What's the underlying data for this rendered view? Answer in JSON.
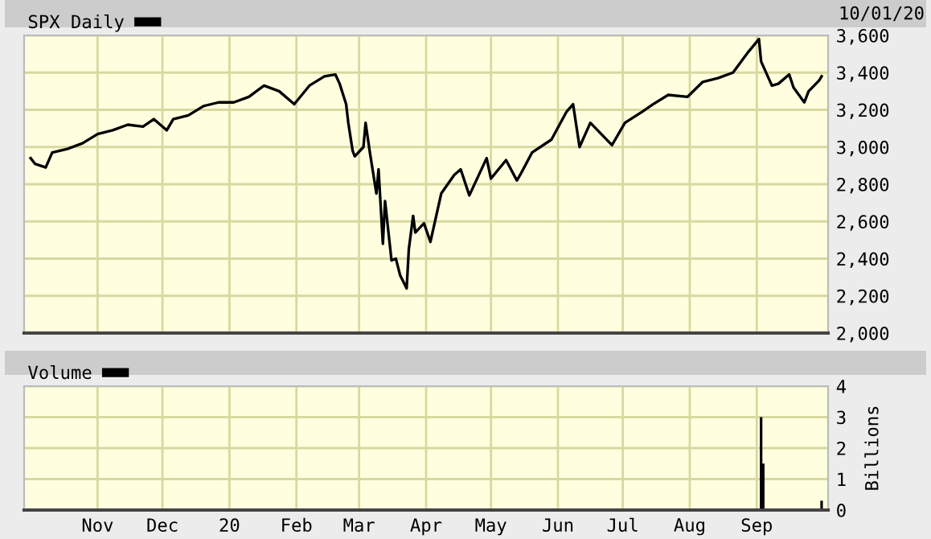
{
  "chart_data": [
    {
      "type": "line",
      "annotations": [
        "10/01/20"
      ],
      "legend": "top left",
      "grid": true,
      "tick_labels": "y",
      "marker": "none",
      "line_style": "solid",
      "xlim": [
        "2019-09-28",
        "2020-10-04"
      ],
      "xticks": [
        {
          "value": "2019-11-01",
          "label": null
        },
        {
          "value": "2019-12-01",
          "label": null
        },
        {
          "value": "2020-01-01",
          "label": null
        },
        {
          "value": "2020-02-01",
          "label": null
        },
        {
          "value": "2020-03-01",
          "label": null
        },
        {
          "value": "2020-04-01",
          "label": null
        },
        {
          "value": "2020-05-01",
          "label": null
        },
        {
          "value": "2020-06-01",
          "label": null
        },
        {
          "value": "2020-07-01",
          "label": null
        },
        {
          "value": "2020-08-01",
          "label": null
        },
        {
          "value": "2020-09-01",
          "label": null
        }
      ],
      "ylim": [
        2000,
        3600
      ],
      "yticks": [
        {
          "value": 2000,
          "label": "2,000"
        },
        {
          "value": 2200,
          "label": "2,200"
        },
        {
          "value": 2400,
          "label": "2,400"
        },
        {
          "value": 2600,
          "label": "2,600"
        },
        {
          "value": 2800,
          "label": "2,800"
        },
        {
          "value": 3000,
          "label": "3,000"
        },
        {
          "value": 3200,
          "label": "3,200"
        },
        {
          "value": 3400,
          "label": "3,400"
        },
        {
          "value": 3600,
          "label": "3,600"
        }
      ],
      "series": [
        {
          "name": "SPX Daily",
          "color": "#000000",
          "x": [
            "2019-10-01",
            "2019-10-03",
            "2019-10-08",
            "2019-10-11",
            "2019-10-18",
            "2019-10-25",
            "2019-11-01",
            "2019-11-08",
            "2019-11-15",
            "2019-11-22",
            "2019-11-27",
            "2019-12-03",
            "2019-12-06",
            "2019-12-13",
            "2019-12-20",
            "2019-12-27",
            "2020-01-03",
            "2020-01-10",
            "2020-01-17",
            "2020-01-24",
            "2020-01-31",
            "2020-02-07",
            "2020-02-14",
            "2020-02-19",
            "2020-02-21",
            "2020-02-24",
            "2020-02-25",
            "2020-02-27",
            "2020-02-28",
            "2020-03-03",
            "2020-03-04",
            "2020-03-06",
            "2020-03-09",
            "2020-03-10",
            "2020-03-12",
            "2020-03-13",
            "2020-03-16",
            "2020-03-18",
            "2020-03-20",
            "2020-03-23",
            "2020-03-24",
            "2020-03-26",
            "2020-03-27",
            "2020-03-31",
            "2020-04-03",
            "2020-04-08",
            "2020-04-14",
            "2020-04-17",
            "2020-04-21",
            "2020-04-29",
            "2020-05-01",
            "2020-05-08",
            "2020-05-13",
            "2020-05-15",
            "2020-05-20",
            "2020-05-29",
            "2020-06-05",
            "2020-06-08",
            "2020-06-11",
            "2020-06-16",
            "2020-06-26",
            "2020-07-02",
            "2020-07-10",
            "2020-07-15",
            "2020-07-22",
            "2020-07-31",
            "2020-08-07",
            "2020-08-14",
            "2020-08-21",
            "2020-08-28",
            "2020-09-02",
            "2020-09-03",
            "2020-09-08",
            "2020-09-11",
            "2020-09-16",
            "2020-09-18",
            "2020-09-23",
            "2020-09-25",
            "2020-09-30",
            "2020-10-01"
          ],
          "values": [
            2940,
            2910,
            2890,
            2970,
            2990,
            3020,
            3070,
            3090,
            3120,
            3110,
            3150,
            3090,
            3150,
            3170,
            3220,
            3240,
            3240,
            3270,
            3330,
            3300,
            3230,
            3330,
            3380,
            3390,
            3340,
            3230,
            3130,
            2980,
            2950,
            3000,
            3130,
            2970,
            2750,
            2880,
            2480,
            2710,
            2390,
            2400,
            2310,
            2240,
            2450,
            2630,
            2540,
            2590,
            2490,
            2750,
            2850,
            2880,
            2740,
            2940,
            2830,
            2930,
            2820,
            2860,
            2970,
            3040,
            3190,
            3230,
            3000,
            3130,
            3010,
            3130,
            3190,
            3230,
            3280,
            3270,
            3350,
            3370,
            3400,
            3510,
            3580,
            3460,
            3330,
            3340,
            3390,
            3320,
            3240,
            3300,
            3360,
            3380
          ]
        }
      ]
    },
    {
      "type": "bar",
      "legend": "top left",
      "grid": true,
      "y2label": "Billions",
      "xlim": [
        "2019-09-28",
        "2020-10-04"
      ],
      "xticks": [
        {
          "value": "2019-11-01",
          "label": "Nov"
        },
        {
          "value": "2019-12-01",
          "label": "Dec"
        },
        {
          "value": "2020-01-01",
          "label": "20"
        },
        {
          "value": "2020-02-01",
          "label": "Feb"
        },
        {
          "value": "2020-03-01",
          "label": "Mar"
        },
        {
          "value": "2020-04-01",
          "label": "Apr"
        },
        {
          "value": "2020-05-01",
          "label": "May"
        },
        {
          "value": "2020-06-01",
          "label": "Jun"
        },
        {
          "value": "2020-07-01",
          "label": "Jul"
        },
        {
          "value": "2020-08-01",
          "label": "Aug"
        },
        {
          "value": "2020-09-01",
          "label": "Sep"
        }
      ],
      "ylim": [
        0,
        4
      ],
      "yticks": [
        0,
        1,
        2,
        3,
        4
      ],
      "series": [
        {
          "name": "Volume",
          "color": "#000000",
          "x": [
            "2020-09-03",
            "2020-09-04",
            "2020-10-01"
          ],
          "values": [
            3.0,
            1.5,
            0.3
          ]
        }
      ]
    }
  ]
}
